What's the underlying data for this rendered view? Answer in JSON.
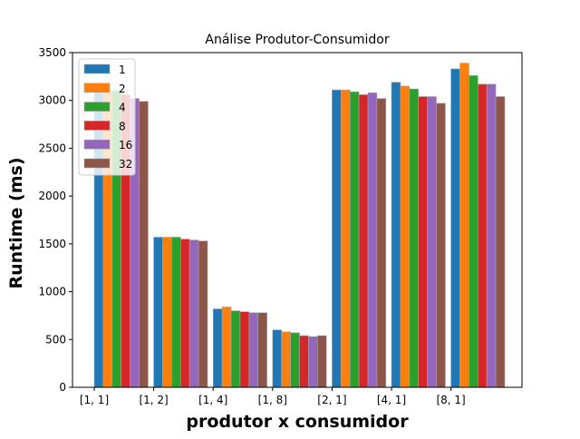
{
  "chart_data": {
    "type": "bar",
    "title": "Análise Produtor-Consumidor",
    "xlabel": "produtor x consumidor",
    "ylabel": "Runtime (ms)",
    "ylim": [
      0,
      3500
    ],
    "yticks": [
      0,
      500,
      1000,
      1500,
      2000,
      2500,
      3000,
      3500
    ],
    "categories": [
      "[1, 1]",
      "[1, 2]",
      "[1, 4]",
      "[1, 8]",
      "[2, 1]",
      "[4, 1]",
      "[8, 1]"
    ],
    "legend": {
      "placement": "top-left"
    },
    "series": [
      {
        "name": "1",
        "color": "#1f77b4",
        "values": [
          3090,
          1570,
          820,
          600,
          3110,
          3190,
          3330
        ]
      },
      {
        "name": "2",
        "color": "#ff7f0e",
        "values": [
          3100,
          1570,
          840,
          580,
          3110,
          3150,
          3390
        ]
      },
      {
        "name": "4",
        "color": "#2ca02c",
        "values": [
          3100,
          1570,
          800,
          570,
          3090,
          3120,
          3260
        ]
      },
      {
        "name": "8",
        "color": "#d62728",
        "values": [
          3060,
          1550,
          790,
          540,
          3060,
          3040,
          3170
        ]
      },
      {
        "name": "16",
        "color": "#9467bd",
        "values": [
          3020,
          1540,
          780,
          530,
          3080,
          3040,
          3170
        ]
      },
      {
        "name": "32",
        "color": "#8c564b",
        "values": [
          2990,
          1530,
          780,
          540,
          3020,
          2970,
          3040
        ]
      }
    ]
  }
}
